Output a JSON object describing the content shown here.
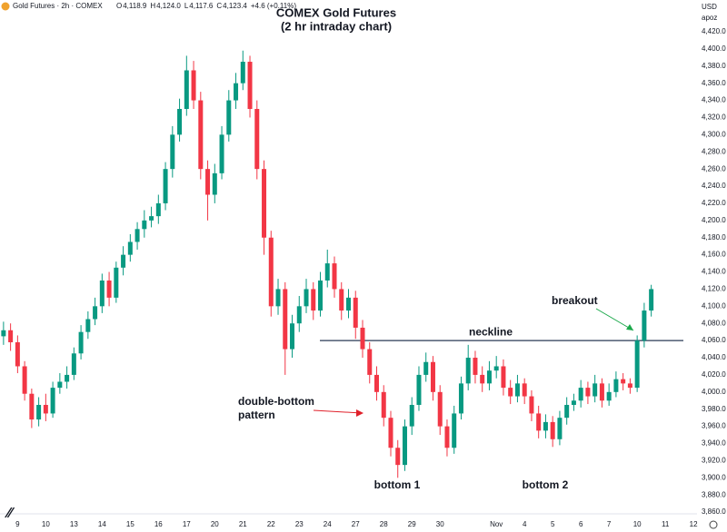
{
  "header": {
    "symbol": "Gold Futures · 2h · COMEX",
    "ohlc": [
      {
        "label": "O",
        "value": "4,118.9"
      },
      {
        "label": "H",
        "value": "4,124.0"
      },
      {
        "label": "L",
        "value": "4,117.6"
      },
      {
        "label": "C",
        "value": "4,123.4"
      }
    ],
    "change": "+4.6 (+0.11%)",
    "currency": "USD",
    "scale_mode": "apoz"
  },
  "chart_data": {
    "type": "candlestick",
    "title": "COMEX Gold Futures",
    "subtitle": "(2 hr intraday chart)",
    "up_color": "#089981",
    "down_color": "#f23645",
    "categories": [
      null,
      null,
      "9",
      null,
      null,
      null,
      "10",
      null,
      null,
      null,
      "13",
      null,
      null,
      null,
      "14",
      null,
      null,
      null,
      "15",
      null,
      null,
      null,
      "16",
      null,
      null,
      null,
      "17",
      null,
      null,
      null,
      "20",
      null,
      null,
      null,
      "21",
      null,
      null,
      null,
      "22",
      null,
      null,
      null,
      "23",
      null,
      null,
      null,
      "24",
      null,
      null,
      null,
      "27",
      null,
      null,
      null,
      "28",
      null,
      null,
      null,
      "29",
      null,
      null,
      null,
      "30",
      null,
      null,
      null,
      null,
      null,
      null,
      null,
      "Nov",
      null,
      null,
      null,
      "4",
      null,
      null,
      null,
      "5",
      null,
      null,
      null,
      "6",
      null,
      null,
      null,
      "7",
      null,
      null,
      null,
      "10",
      null,
      null,
      null,
      "11",
      null,
      null,
      null,
      "12"
    ],
    "open": [
      4065,
      4072,
      4058,
      4030,
      3998,
      3968,
      3985,
      3975,
      4005,
      4012,
      4020,
      4045,
      4070,
      4085,
      4100,
      4130,
      4110,
      4145,
      4160,
      4175,
      4190,
      4200,
      4205,
      4220,
      4260,
      4300,
      4330,
      4375,
      4340,
      4260,
      4230,
      4255,
      4300,
      4340,
      4360,
      4385,
      4330,
      4260,
      4180,
      4100,
      4120,
      4050,
      4080,
      4100,
      4120,
      4095,
      4130,
      4150,
      4120,
      4095,
      4110,
      4075,
      4050,
      4020,
      4000,
      3970,
      3935,
      3915,
      3960,
      3985,
      4020,
      4035,
      4000,
      3960,
      3935,
      3975,
      4010,
      4040,
      4020,
      4010,
      4025,
      4030,
      4005,
      3995,
      4010,
      3995,
      3975,
      3955,
      3965,
      3945,
      3970,
      3985,
      3990,
      4005,
      3995,
      4010,
      3990,
      4000,
      4015,
      4010,
      4005,
      4060,
      4095,
      null,
      null,
      null,
      null,
      null,
      null
    ],
    "high": [
      4082,
      4080,
      4066,
      4036,
      4004,
      3994,
      3998,
      4012,
      4022,
      4030,
      4052,
      4078,
      4094,
      4110,
      4138,
      4140,
      4152,
      4170,
      4184,
      4198,
      4212,
      4216,
      4230,
      4268,
      4310,
      4342,
      4392,
      4386,
      4350,
      4270,
      4266,
      4310,
      4352,
      4372,
      4398,
      4392,
      4340,
      4270,
      4188,
      4132,
      4128,
      4090,
      4112,
      4132,
      4128,
      4140,
      4166,
      4158,
      4128,
      4120,
      4118,
      4084,
      4058,
      4030,
      4008,
      3978,
      3944,
      3968,
      3994,
      4030,
      4046,
      4042,
      4008,
      3968,
      3984,
      4018,
      4055,
      4048,
      4030,
      4036,
      4042,
      4038,
      4014,
      4020,
      4016,
      4002,
      3984,
      3974,
      3972,
      3978,
      3994,
      3998,
      4014,
      4012,
      4020,
      4016,
      4010,
      4024,
      4022,
      4016,
      4066,
      4104,
      4125,
      null,
      null,
      null,
      null,
      null,
      null
    ],
    "low": [
      4055,
      4048,
      4022,
      3990,
      3958,
      3960,
      3966,
      3970,
      3998,
      4004,
      4014,
      4038,
      4062,
      4078,
      4092,
      4100,
      4104,
      4136,
      4152,
      4166,
      4180,
      4192,
      4196,
      4212,
      4250,
      4292,
      4322,
      4330,
      4248,
      4200,
      4220,
      4248,
      4292,
      4330,
      4352,
      4320,
      4248,
      4160,
      4088,
      4090,
      4020,
      4040,
      4070,
      4092,
      4084,
      4088,
      4122,
      4110,
      4084,
      4086,
      4062,
      4040,
      4010,
      3990,
      3960,
      3925,
      3900,
      3908,
      3950,
      3978,
      4012,
      3990,
      3950,
      3925,
      3928,
      3968,
      4002,
      4010,
      4000,
      4002,
      4016,
      3996,
      3986,
      3988,
      3986,
      3966,
      3946,
      3946,
      3936,
      3938,
      3962,
      3978,
      3982,
      3986,
      3988,
      3982,
      3984,
      3994,
      4002,
      3998,
      4000,
      4052,
      4088,
      null,
      null,
      null,
      null,
      null,
      null
    ],
    "close": [
      4072,
      4058,
      4030,
      3998,
      3968,
      3985,
      3975,
      4005,
      4012,
      4020,
      4045,
      4070,
      4085,
      4100,
      4130,
      4110,
      4145,
      4160,
      4175,
      4190,
      4200,
      4205,
      4220,
      4260,
      4300,
      4330,
      4375,
      4340,
      4260,
      4230,
      4255,
      4300,
      4340,
      4360,
      4385,
      4330,
      4260,
      4180,
      4100,
      4120,
      4050,
      4080,
      4100,
      4120,
      4095,
      4130,
      4150,
      4120,
      4095,
      4110,
      4075,
      4050,
      4020,
      4000,
      3970,
      3935,
      3915,
      3960,
      3985,
      4020,
      4035,
      4000,
      3960,
      3935,
      3975,
      4010,
      4040,
      4020,
      4010,
      4025,
      4030,
      4005,
      3995,
      4010,
      3995,
      3975,
      3955,
      3965,
      3945,
      3970,
      3985,
      3990,
      4005,
      3995,
      4010,
      3990,
      4000,
      4015,
      4010,
      4005,
      4060,
      4095,
      4120,
      null,
      null,
      null,
      null,
      null,
      null
    ],
    "ylim": [
      3858,
      4457
    ],
    "yticks": [
      {
        "value": 3860,
        "label": "3,860.0"
      },
      {
        "value": 3880,
        "label": "3,880.0"
      },
      {
        "value": 3900,
        "label": "3,900.0"
      },
      {
        "value": 3920,
        "label": "3,920.0"
      },
      {
        "value": 3940,
        "label": "3,940.0"
      },
      {
        "value": 3960,
        "label": "3,960.0"
      },
      {
        "value": 3980,
        "label": "3,980.0"
      },
      {
        "value": 4000,
        "label": "4,000.0"
      },
      {
        "value": 4020,
        "label": "4,020.0"
      },
      {
        "value": 4040,
        "label": "4,040.0"
      },
      {
        "value": 4060,
        "label": "4,060.0"
      },
      {
        "value": 4080,
        "label": "4,080.0"
      },
      {
        "value": 4100,
        "label": "4,100.0"
      },
      {
        "value": 4120,
        "label": "4,120.0"
      },
      {
        "value": 4140,
        "label": "4,140.0"
      },
      {
        "value": 4160,
        "label": "4,160.0"
      },
      {
        "value": 4180,
        "label": "4,180.0"
      },
      {
        "value": 4200,
        "label": "4,200.0"
      },
      {
        "value": 4220,
        "label": "4,220.0"
      },
      {
        "value": 4240,
        "label": "4,240.0"
      },
      {
        "value": 4260,
        "label": "4,260.0"
      },
      {
        "value": 4280,
        "label": "4,280.0"
      },
      {
        "value": 4300,
        "label": "4,300.0"
      },
      {
        "value": 4320,
        "label": "4,320.0"
      },
      {
        "value": 4340,
        "label": "4,340.0"
      },
      {
        "value": 4360,
        "label": "4,360.0"
      },
      {
        "value": 4380,
        "label": "4,380.0"
      },
      {
        "value": 4400,
        "label": "4,400.0"
      },
      {
        "value": 4420,
        "label": "4,420.0"
      }
    ],
    "grid": false,
    "neckline": {
      "label": "neckline",
      "value": 4060
    },
    "annotations": [
      "breakout",
      "double-bottom",
      "pattern",
      "bottom 1",
      "bottom 2"
    ]
  }
}
